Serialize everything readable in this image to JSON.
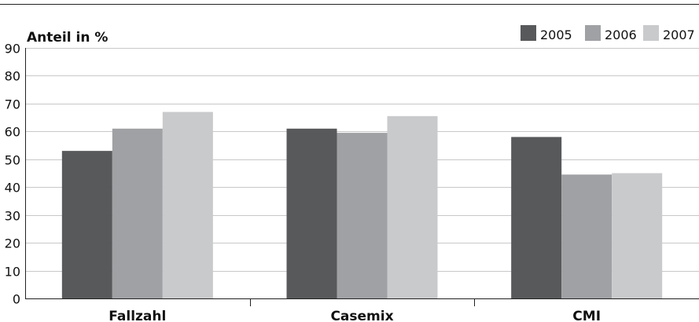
{
  "chart_data": {
    "type": "bar",
    "ylabel": "Anteil in %",
    "categories": [
      "Fallzahl",
      "Casemix",
      "CMI"
    ],
    "series": [
      {
        "name": "2005",
        "values": [
          53,
          61,
          58
        ],
        "color": "#58595b"
      },
      {
        "name": "2006",
        "values": [
          61,
          59.5,
          44.5
        ],
        "color": "#a0a1a4"
      },
      {
        "name": "2007",
        "values": [
          67,
          65.5,
          45
        ],
        "color": "#c9cacc"
      }
    ],
    "ylim": [
      0,
      90
    ],
    "yticks": [
      0,
      10,
      20,
      30,
      40,
      50,
      60,
      70,
      80,
      90
    ],
    "grid": true,
    "legend": "top-right"
  }
}
